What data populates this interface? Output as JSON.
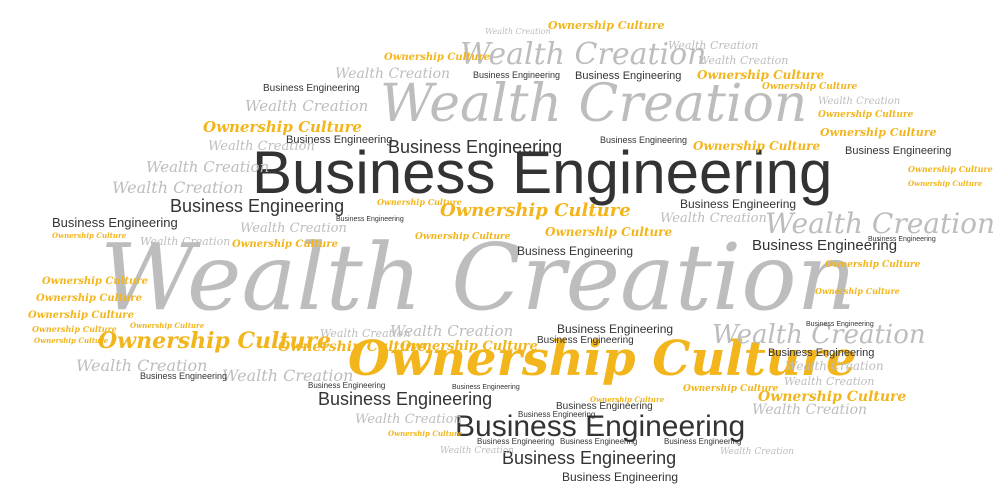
{
  "phrases": {
    "business": "Business Engineering",
    "wealth": "Wealth Creation",
    "ownership": "Ownership Culture"
  },
  "colors": {
    "business": "#333333",
    "wealth": "#bdbdbd",
    "ownership": "#f2b51c"
  }
}
